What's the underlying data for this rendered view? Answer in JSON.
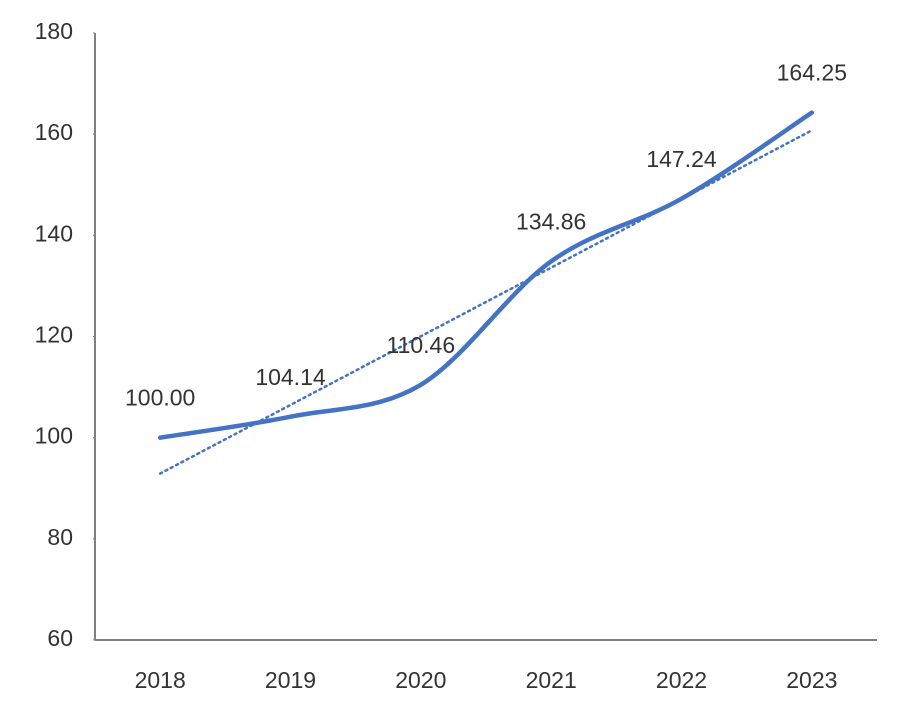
{
  "chart_data": {
    "type": "line",
    "categories": [
      "2018",
      "2019",
      "2020",
      "2021",
      "2022",
      "2023"
    ],
    "values": [
      100.0,
      104.14,
      110.46,
      134.86,
      147.24,
      164.25
    ],
    "value_labels": [
      "100.00",
      "104.14",
      "110.46",
      "134.86",
      "147.24",
      "164.25"
    ],
    "color": "#4472c4",
    "smooth": true,
    "trendline": true,
    "ylim": [
      60,
      180
    ],
    "yticks": [
      60,
      80,
      100,
      120,
      140,
      160,
      180
    ],
    "grid": false
  }
}
